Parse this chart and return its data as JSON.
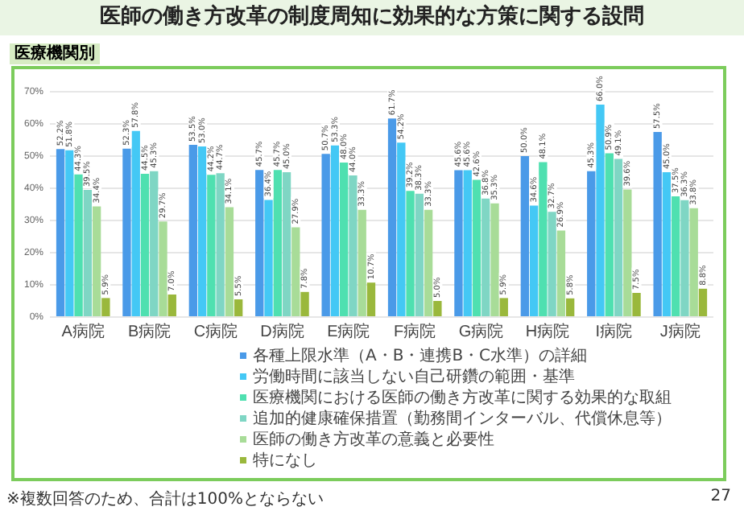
{
  "chart_data": {
    "type": "bar",
    "title": "医師の働き方改革の制度周知に効果的な方策に関する設問",
    "subtitle": "医療機関別",
    "categories": [
      "A病院",
      "B病院",
      "C病院",
      "D病院",
      "E病院",
      "F病院",
      "G病院",
      "H病院",
      "I病院",
      "J病院"
    ],
    "ylim": [
      0,
      70
    ],
    "yticks": [
      {
        "value": 0,
        "label": "0%"
      },
      {
        "value": 10,
        "label": "10%"
      },
      {
        "value": 20,
        "label": "20%"
      },
      {
        "value": 30,
        "label": "30%"
      },
      {
        "value": 40,
        "label": "40%"
      },
      {
        "value": 50,
        "label": "50%"
      },
      {
        "value": 60,
        "label": "60%"
      },
      {
        "value": 70,
        "label": "70%"
      }
    ],
    "grid": "y",
    "legend": "bottom",
    "series": [
      {
        "name": "各種上限水準（A・B・連携B・C水準）の詳細",
        "color": "#4a9ae8",
        "values": [
          52.2,
          52.3,
          53.5,
          45.7,
          50.7,
          61.7,
          45.6,
          50.0,
          45.3,
          57.5
        ],
        "value_labels": [
          "52.2%",
          "52.3%",
          "53.5%",
          "45.7%",
          "50.7%",
          "61.7%",
          "45.6%",
          "50.0%",
          "45.3%",
          "57.5%"
        ]
      },
      {
        "name": "労働時間に該当しない自己研鑽の範囲・基準",
        "color": "#44c8f5",
        "values": [
          51.8,
          57.8,
          53.0,
          36.4,
          53.3,
          54.2,
          45.6,
          34.6,
          66.0,
          45.0
        ],
        "value_labels": [
          "51.8%",
          "57.8%",
          "53.0%",
          "36.4%",
          "53.3%",
          "54.2%",
          "45.6%",
          "34.6%",
          "66.0%",
          "45.0%"
        ]
      },
      {
        "name": "医療機関における医師の働き方改革に関する効果的な取組",
        "color": "#4fe0b0",
        "values": [
          44.3,
          44.5,
          44.2,
          45.7,
          48.0,
          39.2,
          42.6,
          48.1,
          50.9,
          37.5
        ],
        "value_labels": [
          "44.3%",
          "44.5%",
          "44.2%",
          "45.7%",
          "48.0%",
          "39.2%",
          "42.6%",
          "48.1%",
          "50.9%",
          "37.5%"
        ]
      },
      {
        "name": "追加的健康確保措置（勤務間インターバル、代償休息等）",
        "color": "#7fd6c4",
        "values": [
          39.5,
          45.3,
          44.7,
          45.0,
          44.0,
          38.3,
          36.8,
          32.7,
          49.1,
          36.3
        ],
        "value_labels": [
          "39.5%",
          "45.3%",
          "44.7%",
          "45.0%",
          "44.0%",
          "38.3%",
          "36.8%",
          "32.7%",
          "49.1%",
          "36.3%"
        ]
      },
      {
        "name": "医師の働き方改革の意義と必要性",
        "color": "#a8dc98",
        "values": [
          34.4,
          29.7,
          34.1,
          27.9,
          33.3,
          33.3,
          35.3,
          26.9,
          39.6,
          33.8
        ],
        "value_labels": [
          "34.4%",
          "29.7%",
          "34.1%",
          "27.9%",
          "33.3%",
          "33.3%",
          "35.3%",
          "26.9%",
          "39.6%",
          "33.8%"
        ]
      },
      {
        "name": "特になし",
        "color": "#9ab83c",
        "values": [
          5.9,
          7.0,
          5.5,
          7.8,
          10.7,
          5.0,
          5.9,
          5.8,
          7.5,
          8.8
        ],
        "value_labels": [
          "5.9%",
          "7.0%",
          "5.5%",
          "7.8%",
          "10.7%",
          "5.0%",
          "5.9%",
          "5.8%",
          "7.5%",
          "8.8%"
        ]
      }
    ],
    "annotations": [
      "※複数回答のため、合計は100%とならない",
      "27"
    ]
  }
}
